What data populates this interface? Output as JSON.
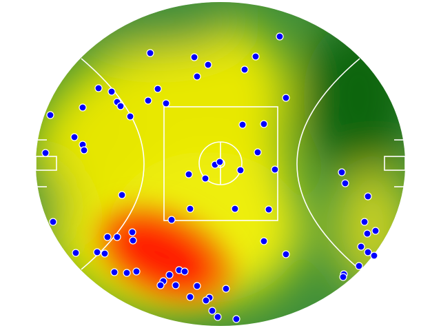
{
  "chart_data": {
    "type": "scatter",
    "x": [
      354,
      166,
      230,
      319,
      250,
      303,
      234,
      91,
      110,
      177,
      163,
      118,
      123,
      189,
      68,
      137,
      21,
      363,
      300,
      331,
      56,
      68,
      70,
      14,
      322,
      260,
      267,
      297,
      347,
      222,
      246,
      444,
      449,
      125,
      482,
      224,
      289,
      338,
      197,
      25,
      477,
      493,
      481,
      104,
      118,
      140,
      141,
      331,
      472,
      58,
      89,
      100,
      363,
      482,
      491,
      469,
      114,
      132,
      146,
      208,
      216,
      194,
      185,
      181,
      203,
      234,
      276,
      447,
      446,
      224,
      252,
      247,
      256,
      264,
      291
    ],
    "y": [
      420,
      396,
      390,
      391,
      379,
      372,
      362,
      345,
      340,
      344,
      327,
      325,
      319,
      323,
      317,
      304,
      306,
      331,
      292,
      293,
      274,
      263,
      255,
      251,
      252,
      234,
      238,
      226,
      227,
      220,
      214,
      223,
      207,
      190,
      188,
      170,
      170,
      169,
      154,
      151,
      151,
      138,
      134,
      129,
      129,
      136,
      124,
      123,
      115,
      106,
      107,
      105,
      104,
      107,
      102,
      87,
      78,
      77,
      79,
      81,
      79,
      74,
      65,
      59,
      59,
      58,
      54,
      75,
      71,
      42,
      41,
      37,
      22,
      13,
      10
    ],
    "xlim": [
      0,
      536
    ],
    "ylim": [
      0,
      470
    ],
    "color": "#0000ff"
  }
}
